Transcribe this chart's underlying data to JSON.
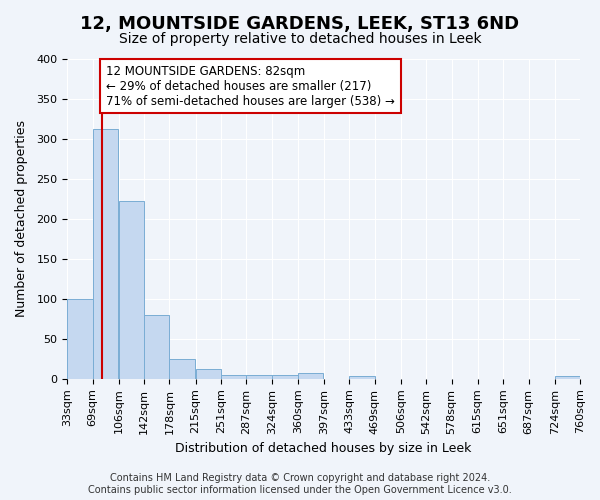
{
  "title": "12, MOUNTSIDE GARDENS, LEEK, ST13 6ND",
  "subtitle": "Size of property relative to detached houses in Leek",
  "xlabel": "Distribution of detached houses by size in Leek",
  "ylabel": "Number of detached properties",
  "bin_labels": [
    "33sqm",
    "69sqm",
    "106sqm",
    "142sqm",
    "178sqm",
    "215sqm",
    "251sqm",
    "287sqm",
    "324sqm",
    "360sqm",
    "397sqm",
    "433sqm",
    "469sqm",
    "506sqm",
    "542sqm",
    "578sqm",
    "615sqm",
    "651sqm",
    "687sqm",
    "724sqm",
    "760sqm"
  ],
  "bin_edges": [
    33,
    69,
    106,
    142,
    178,
    215,
    251,
    287,
    324,
    360,
    397,
    433,
    469,
    506,
    542,
    578,
    615,
    651,
    687,
    724,
    760
  ],
  "bar_heights": [
    100,
    313,
    222,
    80,
    25,
    12,
    5,
    5,
    5,
    7,
    0,
    3,
    0,
    0,
    0,
    0,
    0,
    0,
    0,
    3
  ],
  "bar_color": "#c5d8f0",
  "bar_edge_color": "#7aadd4",
  "property_size": 82,
  "vline_color": "#cc0000",
  "ylim": [
    0,
    400
  ],
  "yticks": [
    0,
    50,
    100,
    150,
    200,
    250,
    300,
    350,
    400
  ],
  "annotation_text": "12 MOUNTSIDE GARDENS: 82sqm\n← 29% of detached houses are smaller (217)\n71% of semi-detached houses are larger (538) →",
  "annotation_box_color": "#ffffff",
  "annotation_box_edge_color": "#cc0000",
  "footer_line1": "Contains HM Land Registry data © Crown copyright and database right 2024.",
  "footer_line2": "Contains public sector information licensed under the Open Government Licence v3.0.",
  "background_color": "#f0f4fa",
  "grid_color": "#ffffff",
  "title_fontsize": 13,
  "subtitle_fontsize": 10,
  "axis_label_fontsize": 9,
  "tick_fontsize": 8,
  "annotation_fontsize": 8.5,
  "footer_fontsize": 7
}
